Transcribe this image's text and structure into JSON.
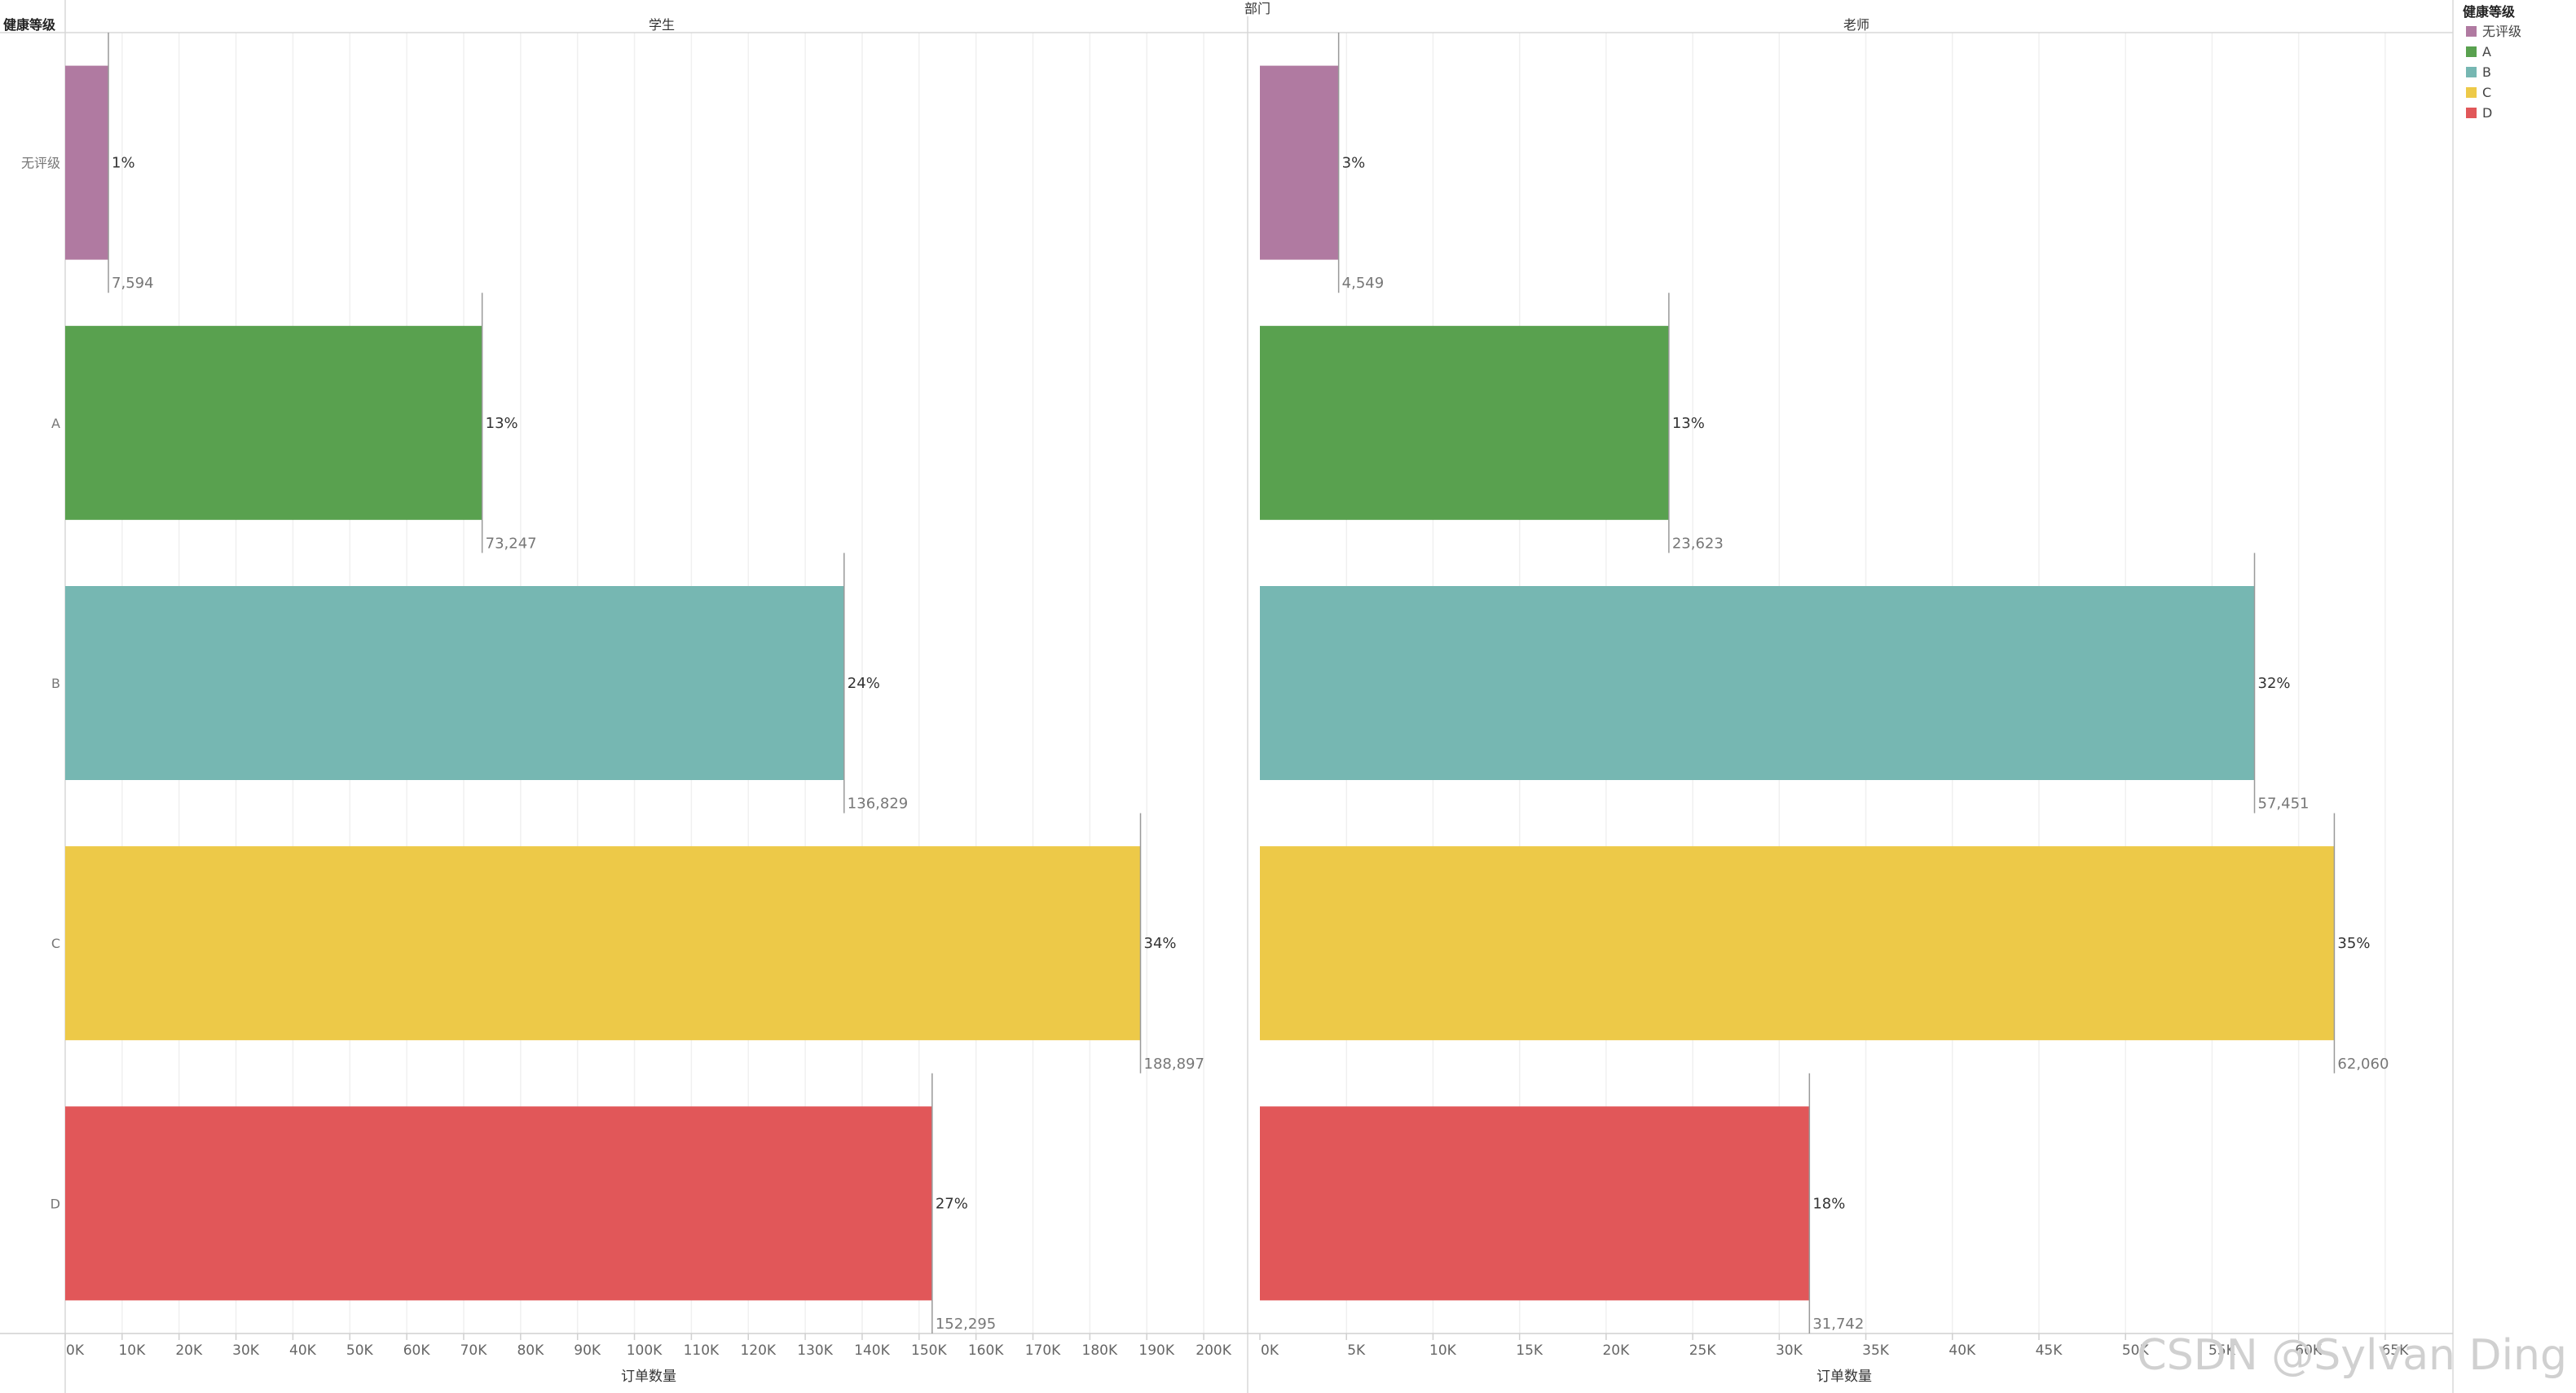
{
  "chart_data": {
    "type": "bar",
    "orientation": "horizontal",
    "column_dimension_title": "部门",
    "row_dimension_title": "健康等级",
    "categories": [
      "无评级",
      "A",
      "B",
      "C",
      "D"
    ],
    "colors": [
      "#B07AA1",
      "#59A14F",
      "#76B7B2",
      "#EDC948",
      "#E15759"
    ],
    "panels": [
      {
        "name": "学生",
        "values": [
          7594,
          73247,
          136829,
          188897,
          152295
        ],
        "value_labels": [
          "7,594",
          "73,247",
          "136,829",
          "188,897",
          "152,295"
        ],
        "percent_labels": [
          "1%",
          "13%",
          "24%",
          "34%",
          "27%"
        ],
        "xlim": [
          0,
          205000
        ],
        "ticks": [
          0,
          10000,
          20000,
          30000,
          40000,
          50000,
          60000,
          70000,
          80000,
          90000,
          100000,
          110000,
          120000,
          130000,
          140000,
          150000,
          160000,
          170000,
          180000,
          190000,
          200000
        ],
        "tick_labels": [
          "0K",
          "10K",
          "20K",
          "30K",
          "40K",
          "50K",
          "60K",
          "70K",
          "80K",
          "90K",
          "100K",
          "110K",
          "120K",
          "130K",
          "140K",
          "150K",
          "160K",
          "170K",
          "180K",
          "190K",
          "200K"
        ],
        "xlabel": "订单数量"
      },
      {
        "name": "老师",
        "values": [
          4549,
          23623,
          57451,
          62060,
          31742
        ],
        "value_labels": [
          "4,549",
          "23,623",
          "57,451",
          "62,060",
          "31,742"
        ],
        "percent_labels": [
          "3%",
          "13%",
          "32%",
          "35%",
          "18%"
        ],
        "xlim": [
          0,
          67500
        ],
        "ticks": [
          0,
          5000,
          10000,
          15000,
          20000,
          25000,
          30000,
          35000,
          40000,
          45000,
          50000,
          55000,
          60000,
          65000
        ],
        "tick_labels": [
          "0K",
          "5K",
          "10K",
          "15K",
          "20K",
          "25K",
          "30K",
          "35K",
          "40K",
          "45K",
          "50K",
          "55K",
          "60K",
          "65K"
        ],
        "xlabel": "订单数量"
      }
    ],
    "legend": {
      "title": "健康等级",
      "position": "top-right",
      "items": [
        "无评级",
        "A",
        "B",
        "C",
        "D"
      ]
    },
    "grid": true
  },
  "watermark": "CSDN @Sylvan Ding"
}
